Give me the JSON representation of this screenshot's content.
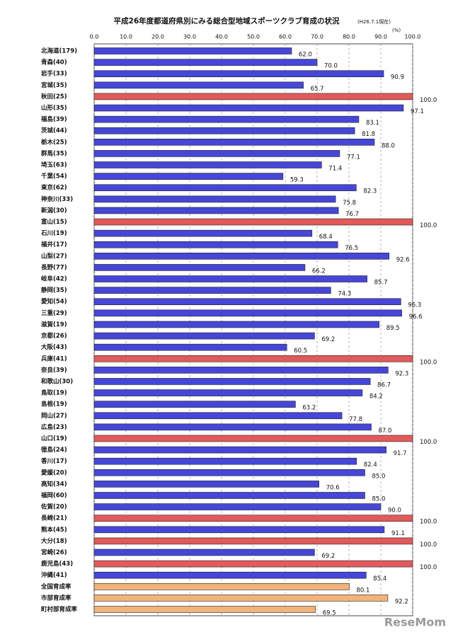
{
  "chart_data": {
    "type": "bar",
    "orientation": "horizontal",
    "title": "平成26年度都道府県別にみる総合型地域スポーツクラブ育成の状況",
    "subtitle": "(H26.7.1現在)",
    "unit_label": "(%)",
    "watermark": "ReseMom",
    "categories": [
      "北海道(179)",
      "青森(40)",
      "岩手(33)",
      "宮城(35)",
      "秋田(25)",
      "山形(35)",
      "福島(39)",
      "茨城(44)",
      "栃木(25)",
      "群馬(35)",
      "埼玉(63)",
      "千葉(54)",
      "東京(62)",
      "神奈川(33)",
      "新潟(30)",
      "富山(15)",
      "石川(19)",
      "福井(17)",
      "山梨(27)",
      "長野(77)",
      "岐阜(42)",
      "静岡(35)",
      "愛知(54)",
      "三重(29)",
      "滋賀(19)",
      "京都(26)",
      "大阪(43)",
      "兵庫(41)",
      "奈良(39)",
      "和歌山(30)",
      "鳥取(19)",
      "島根(19)",
      "岡山(27)",
      "広島(23)",
      "山口(19)",
      "徳島(24)",
      "香川(17)",
      "愛媛(20)",
      "高知(34)",
      "福岡(60)",
      "佐賀(20)",
      "長崎(21)",
      "熊本(45)",
      "大分(18)",
      "宮崎(26)",
      "鹿児島(43)",
      "沖縄(41)",
      "全国育成率",
      "市部育成率",
      "町村部育成率"
    ],
    "values": [
      62.0,
      70.0,
      90.9,
      65.7,
      100.0,
      97.1,
      83.1,
      81.8,
      88.0,
      77.1,
      71.4,
      59.3,
      82.3,
      75.8,
      76.7,
      100.0,
      68.4,
      76.5,
      92.6,
      66.2,
      85.7,
      74.3,
      96.3,
      96.6,
      89.5,
      69.2,
      60.5,
      100.0,
      92.3,
      86.7,
      84.2,
      63.2,
      77.8,
      87.0,
      100.0,
      91.7,
      82.4,
      85.0,
      70.6,
      85.0,
      90.0,
      100.0,
      91.1,
      100.0,
      69.2,
      100.0,
      85.4,
      80.1,
      92.2,
      69.5
    ],
    "value_labels": [
      "62.0",
      "70.0",
      "90.9",
      "65.7",
      "100.0",
      "97.1",
      "83.1",
      "81.8",
      "88.0",
      "77.1",
      "71.4",
      "59.3",
      "82.3",
      "75.8",
      "76.7",
      "100.0",
      "68.4",
      "76.5",
      "92.6",
      "66.2",
      "85.7",
      "74.3",
      "96.3",
      "96.6",
      "89.5",
      "69.2",
      "60.5",
      "100.0",
      "92.3",
      "86.7",
      "84.2",
      "63.2",
      "77.8",
      "87.0",
      "100.0",
      "91.7",
      "82.4",
      "85.0",
      "70.6",
      "85.0",
      "90.0",
      "100.0",
      "91.1",
      "100.0",
      "69.2",
      "100.0",
      "85.4",
      "80.1",
      "92.2",
      "69.5"
    ],
    "colors": [
      "#4646d8",
      "#4646d8",
      "#4646d8",
      "#4646d8",
      "#e25a5a",
      "#4646d8",
      "#4646d8",
      "#4646d8",
      "#4646d8",
      "#4646d8",
      "#4646d8",
      "#4646d8",
      "#4646d8",
      "#4646d8",
      "#4646d8",
      "#e25a5a",
      "#4646d8",
      "#4646d8",
      "#4646d8",
      "#4646d8",
      "#4646d8",
      "#4646d8",
      "#4646d8",
      "#4646d8",
      "#4646d8",
      "#4646d8",
      "#4646d8",
      "#e25a5a",
      "#4646d8",
      "#4646d8",
      "#4646d8",
      "#4646d8",
      "#4646d8",
      "#4646d8",
      "#e25a5a",
      "#4646d8",
      "#4646d8",
      "#4646d8",
      "#4646d8",
      "#4646d8",
      "#4646d8",
      "#e25a5a",
      "#4646d8",
      "#e25a5a",
      "#4646d8",
      "#e25a5a",
      "#4646d8",
      "#f2b27a",
      "#f2b27a",
      "#f2b27a"
    ],
    "xlim": [
      0,
      100
    ],
    "xticks": [
      {
        "value": 0,
        "label": "0.0"
      },
      {
        "value": 10,
        "label": "10.0"
      },
      {
        "value": 20,
        "label": "20.0"
      },
      {
        "value": 30,
        "label": "30.0"
      },
      {
        "value": 40,
        "label": "40.0"
      },
      {
        "value": 50,
        "label": "50.0"
      },
      {
        "value": 60,
        "label": "60.0"
      },
      {
        "value": 70,
        "label": "70.0"
      },
      {
        "value": 80,
        "label": "80.0"
      },
      {
        "value": 90,
        "label": "90.0"
      },
      {
        "value": 100,
        "label": "100.0"
      }
    ],
    "grid": true
  }
}
